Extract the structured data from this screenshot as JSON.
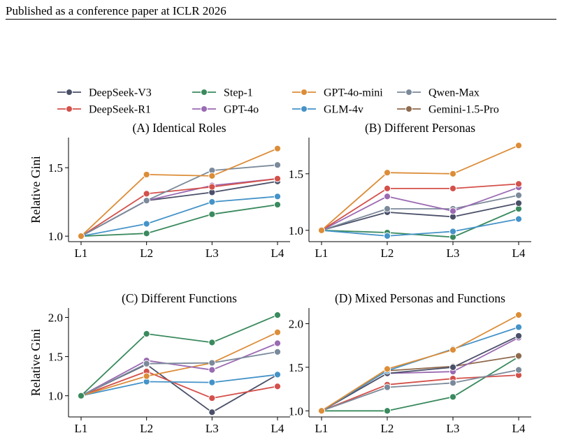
{
  "header": {
    "text": "Published as a conference paper at ICLR 2026"
  },
  "legend": {
    "entries": [
      {
        "name": "DeepSeek-V3",
        "color": "#4a5068"
      },
      {
        "name": "Step-1",
        "color": "#3a8a5e"
      },
      {
        "name": "GPT-4o-mini",
        "color": "#dc8d38"
      },
      {
        "name": "Qwen-Max",
        "color": "#7b8a9a"
      },
      {
        "name": "DeepSeek-R1",
        "color": "#d4504a"
      },
      {
        "name": "GPT-4o",
        "color": "#9a6ab2"
      },
      {
        "name": "GLM-4v",
        "color": "#4493c8"
      },
      {
        "name": "Gemini-1.5-Pro",
        "color": "#8e6a4e"
      }
    ]
  },
  "chart_data": [
    {
      "type": "line",
      "title": "(A) Identical Roles",
      "xlabel": "",
      "ylabel": "Relative Gini",
      "categories": [
        "L1",
        "L2",
        "L3",
        "L4"
      ],
      "ylim": [
        0.96,
        1.72
      ],
      "yticks": [
        1.0,
        1.5
      ],
      "ytick_labels": [
        "1.0",
        "1.5"
      ],
      "series": [
        {
          "name": "Step-1",
          "color": "#3a8a5e",
          "values": [
            1.0,
            1.02,
            1.16,
            1.23
          ]
        },
        {
          "name": "GLM-4v",
          "color": "#4493c8",
          "values": [
            1.0,
            1.09,
            1.25,
            1.29
          ]
        },
        {
          "name": "DeepSeek-V3",
          "color": "#4a5068",
          "values": [
            1.0,
            1.26,
            1.32,
            1.4
          ]
        },
        {
          "name": "GPT-4o",
          "color": "#9a6ab2",
          "values": [
            1.0,
            1.26,
            1.37,
            1.42
          ]
        },
        {
          "name": "DeepSeek-R1",
          "color": "#d4504a",
          "values": [
            1.0,
            1.31,
            1.36,
            1.42
          ]
        },
        {
          "name": "Qwen-Max",
          "color": "#7b8a9a",
          "values": [
            1.0,
            1.26,
            1.48,
            1.52
          ]
        },
        {
          "name": "GPT-4o-mini",
          "color": "#dc8d38",
          "values": [
            1.0,
            1.45,
            1.44,
            1.64
          ]
        }
      ]
    },
    {
      "type": "line",
      "title": "(B) Different Personas",
      "xlabel": "",
      "ylabel": "",
      "categories": [
        "L1",
        "L2",
        "L3",
        "L4"
      ],
      "ylim": [
        0.9,
        1.82
      ],
      "yticks": [
        1.0,
        1.5
      ],
      "ytick_labels": [
        "1.0",
        "1.5"
      ],
      "series": [
        {
          "name": "Step-1",
          "color": "#3a8a5e",
          "values": [
            1.0,
            0.98,
            0.94,
            1.19
          ]
        },
        {
          "name": "GLM-4v",
          "color": "#4493c8",
          "values": [
            1.0,
            0.95,
            0.99,
            1.1
          ]
        },
        {
          "name": "DeepSeek-V3",
          "color": "#4a5068",
          "values": [
            1.0,
            1.16,
            1.12,
            1.24
          ]
        },
        {
          "name": "Qwen-Max",
          "color": "#7b8a9a",
          "values": [
            1.0,
            1.19,
            1.19,
            1.31
          ]
        },
        {
          "name": "GPT-4o",
          "color": "#9a6ab2",
          "values": [
            1.0,
            1.3,
            1.17,
            1.38
          ]
        },
        {
          "name": "DeepSeek-R1",
          "color": "#d4504a",
          "values": [
            1.0,
            1.37,
            1.37,
            1.41
          ]
        },
        {
          "name": "GPT-4o-mini",
          "color": "#dc8d38",
          "values": [
            1.0,
            1.51,
            1.5,
            1.75
          ]
        }
      ]
    },
    {
      "type": "line",
      "title": "(C) Different Functions",
      "xlabel": "",
      "ylabel": "Relative Gini",
      "categories": [
        "L1",
        "L2",
        "L3",
        "L4"
      ],
      "ylim": [
        0.73,
        2.12
      ],
      "yticks": [
        1.0,
        1.5,
        2.0
      ],
      "ytick_labels": [
        "1.0",
        "1.5",
        "2.0"
      ],
      "series": [
        {
          "name": "DeepSeek-V3",
          "color": "#4a5068",
          "values": [
            1.0,
            1.4,
            0.79,
            1.27
          ]
        },
        {
          "name": "DeepSeek-R1",
          "color": "#d4504a",
          "values": [
            1.0,
            1.31,
            0.97,
            1.12
          ]
        },
        {
          "name": "GLM-4v",
          "color": "#4493c8",
          "values": [
            1.0,
            1.18,
            1.17,
            1.27
          ]
        },
        {
          "name": "GPT-4o-mini",
          "color": "#dc8d38",
          "values": [
            1.0,
            1.25,
            1.42,
            1.81
          ]
        },
        {
          "name": "GPT-4o",
          "color": "#9a6ab2",
          "values": [
            1.0,
            1.45,
            1.33,
            1.67
          ]
        },
        {
          "name": "Qwen-Max",
          "color": "#7b8a9a",
          "values": [
            1.0,
            1.41,
            1.42,
            1.56
          ]
        },
        {
          "name": "Step-1",
          "color": "#3a8a5e",
          "values": [
            1.0,
            1.79,
            1.68,
            2.03
          ]
        }
      ]
    },
    {
      "type": "line",
      "title": "(D) Mixed Personas and Functions",
      "xlabel": "",
      "ylabel": "",
      "categories": [
        "L1",
        "L2",
        "L3",
        "L4"
      ],
      "ylim": [
        0.93,
        2.18
      ],
      "yticks": [
        1.0,
        1.5,
        2.0
      ],
      "ytick_labels": [
        "1.0",
        "1.5",
        "2.0"
      ],
      "series": [
        {
          "name": "Step-1",
          "color": "#3a8a5e",
          "values": [
            1.0,
            1.0,
            1.16,
            1.62
          ]
        },
        {
          "name": "DeepSeek-R1",
          "color": "#d4504a",
          "values": [
            1.0,
            1.3,
            1.37,
            1.41
          ]
        },
        {
          "name": "Qwen-Max",
          "color": "#7b8a9a",
          "values": [
            1.0,
            1.27,
            1.32,
            1.47
          ]
        },
        {
          "name": "Gemini-1.5-Pro",
          "color": "#8e6a4e",
          "values": [
            1.0,
            1.46,
            1.51,
            1.63
          ]
        },
        {
          "name": "GPT-4o",
          "color": "#9a6ab2",
          "values": [
            1.0,
            1.43,
            1.45,
            1.84
          ]
        },
        {
          "name": "DeepSeek-V3",
          "color": "#4a5068",
          "values": [
            1.0,
            1.43,
            1.5,
            1.86
          ]
        },
        {
          "name": "GLM-4v",
          "color": "#4493c8",
          "values": [
            1.0,
            1.46,
            1.71,
            1.96
          ]
        },
        {
          "name": "GPT-4o-mini",
          "color": "#dc8d38",
          "values": [
            1.0,
            1.48,
            1.7,
            2.1
          ]
        }
      ]
    }
  ]
}
